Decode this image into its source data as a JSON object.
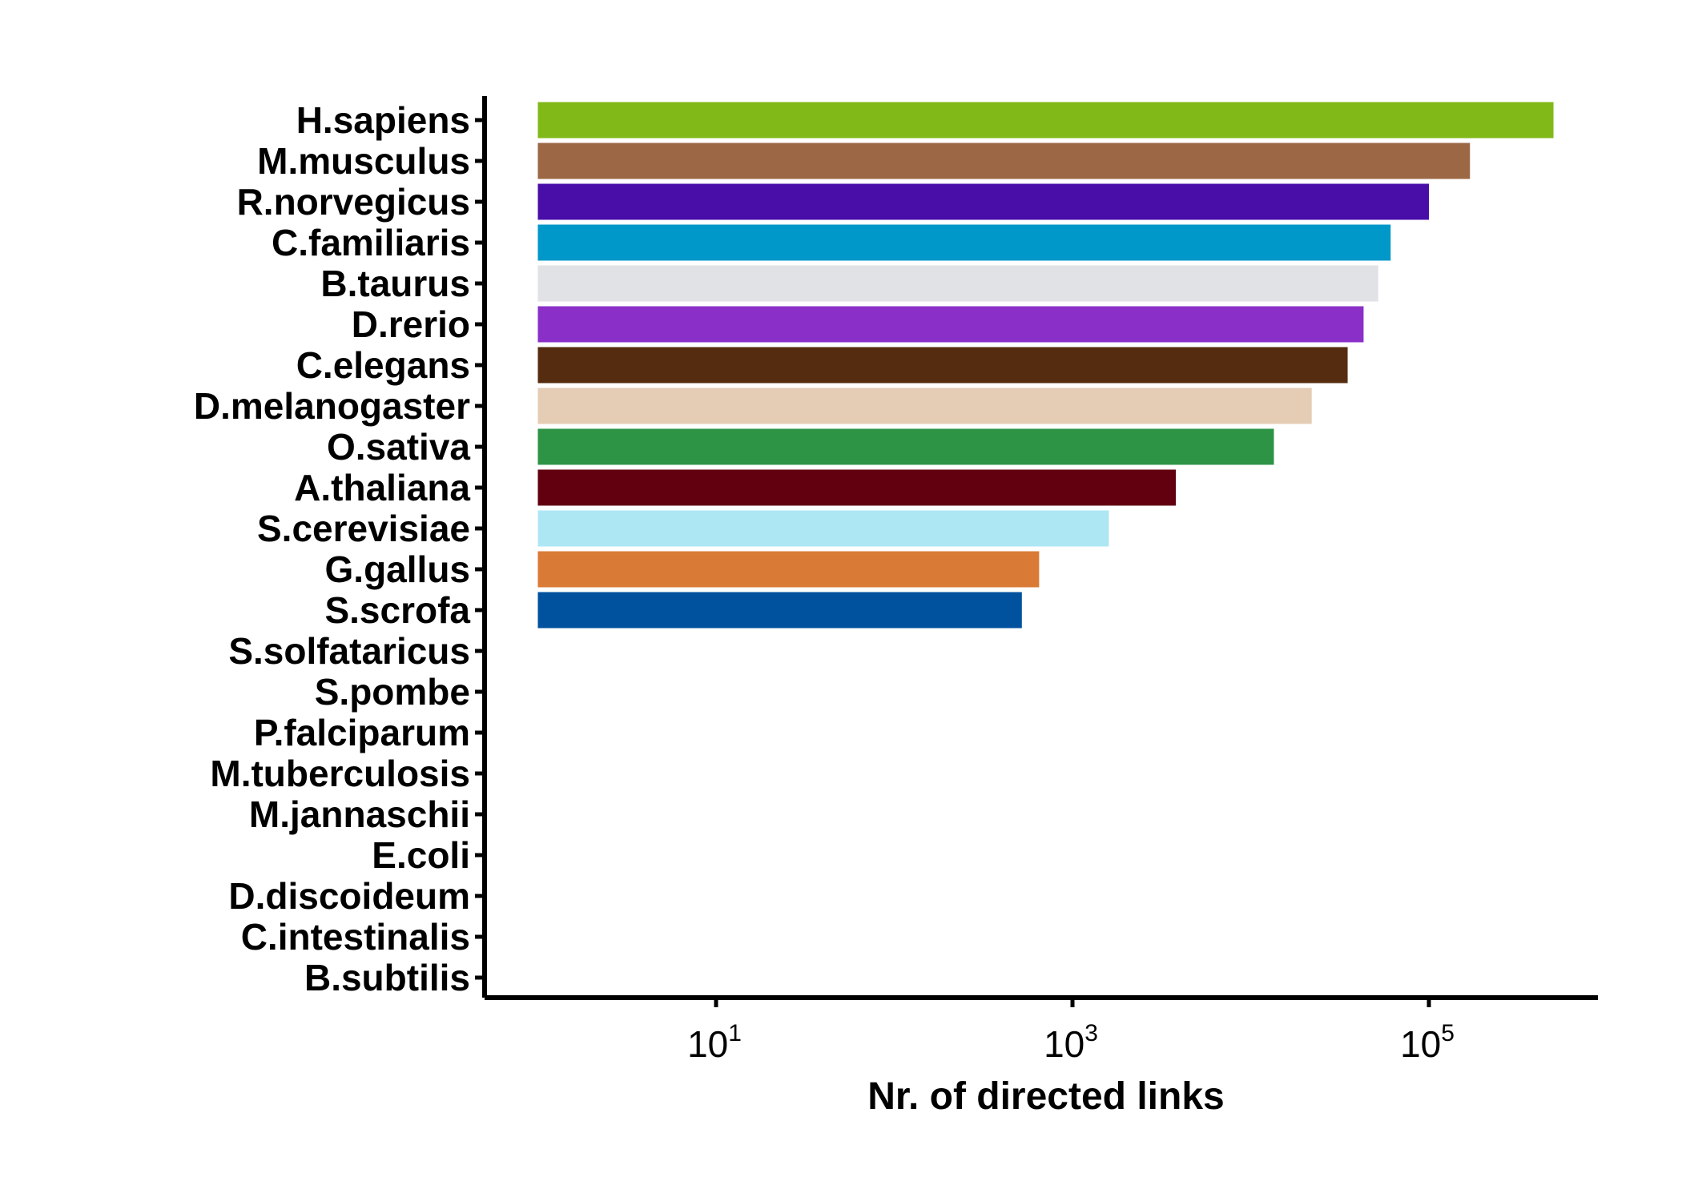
{
  "chart_data": {
    "type": "bar",
    "orientation": "horizontal",
    "x_scale": "log10",
    "xlabel": "Nr. of directed links",
    "ylabel": "",
    "xlim": [
      3,
      900000
    ],
    "x_ticks": [
      {
        "value": 10,
        "base": "10",
        "exp": "1"
      },
      {
        "value": 1000,
        "base": "10",
        "exp": "3"
      },
      {
        "value": 100000,
        "base": "10",
        "exp": "5"
      }
    ],
    "bar_baseline": 1,
    "categories": [
      "H.sapiens",
      "M.musculus",
      "R.norvegicus",
      "C.familiaris",
      "B.taurus",
      "D.rerio",
      "C.elegans",
      "D.melanogaster",
      "O.sativa",
      "A.thaliana",
      "S.cerevisiae",
      "G.gallus",
      "S.scrofa",
      "S.solfataricus",
      "S.pombe",
      "P.falciparum",
      "M.tuberculosis",
      "M.jannaschii",
      "E.coli",
      "D.discoideum",
      "C.intestinalis",
      "B.subtilis"
    ],
    "values": [
      500000,
      170000,
      100000,
      61000,
      52000,
      43000,
      35000,
      22000,
      13500,
      3800,
      1600,
      650,
      520,
      0,
      0,
      0,
      0,
      0,
      0,
      0,
      0,
      0
    ],
    "colors": [
      "#80b918",
      "#9b6744",
      "#490ea8",
      "#0097c9",
      "#e0e2e6",
      "#8a30c8",
      "#552c10",
      "#e5cdb5",
      "#2d9446",
      "#620010",
      "#ade7f4",
      "#d97b36",
      "#00529f",
      null,
      null,
      null,
      null,
      null,
      null,
      null,
      null,
      null
    ],
    "grid": false,
    "legend": "none"
  }
}
